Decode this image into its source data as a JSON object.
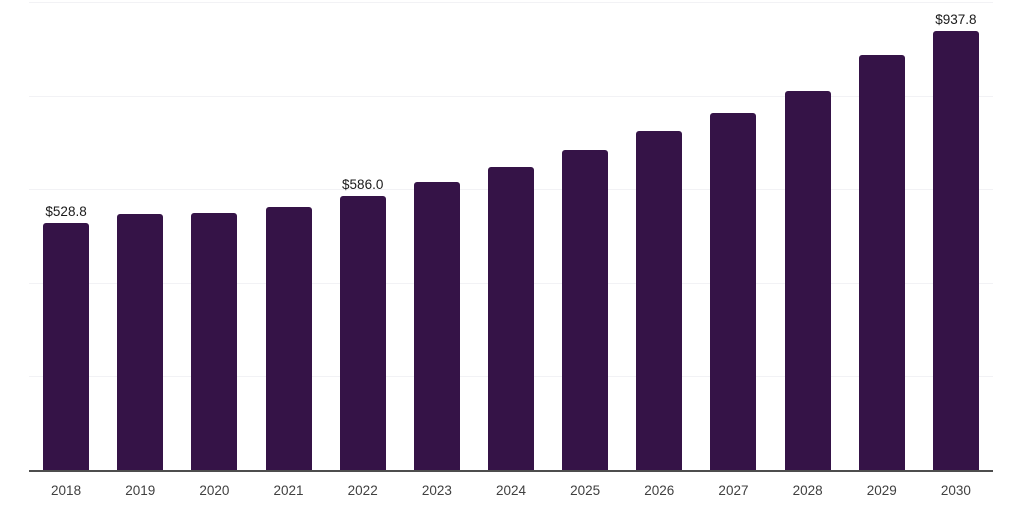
{
  "chart_data": {
    "type": "bar",
    "title": "",
    "xlabel": "",
    "ylabel": "",
    "ylim": [
      0,
      1000
    ],
    "gridline_interval": 200,
    "grid": "horizontal",
    "y_tick_labels_visible": false,
    "legend": "none",
    "categories": [
      "2018",
      "2019",
      "2020",
      "2021",
      "2022",
      "2023",
      "2024",
      "2025",
      "2026",
      "2027",
      "2028",
      "2029",
      "2030"
    ],
    "values": [
      528.8,
      546,
      549,
      561,
      586.0,
      615,
      647,
      683,
      724,
      763,
      810,
      886,
      937.8
    ],
    "points": [
      {
        "category": "2018",
        "value": 528.8,
        "label": "$528.8"
      },
      {
        "category": "2019",
        "value": 546,
        "label": null
      },
      {
        "category": "2020",
        "value": 549,
        "label": null
      },
      {
        "category": "2021",
        "value": 561,
        "label": null
      },
      {
        "category": "2022",
        "value": 586.0,
        "label": "$586.0"
      },
      {
        "category": "2023",
        "value": 615,
        "label": null
      },
      {
        "category": "2024",
        "value": 647,
        "label": null
      },
      {
        "category": "2025",
        "value": 683,
        "label": null
      },
      {
        "category": "2026",
        "value": 724,
        "label": null
      },
      {
        "category": "2027",
        "value": 763,
        "label": null
      },
      {
        "category": "2028",
        "value": 810,
        "label": null
      },
      {
        "category": "2029",
        "value": 886,
        "label": null
      },
      {
        "category": "2030",
        "value": 937.8,
        "label": "$937.8"
      }
    ],
    "colors": {
      "bar": "#351347",
      "gridline": "#f2f2f5",
      "axis": "#4d4d4d",
      "data_label": "#1a1a1a",
      "tick_label": "#404040",
      "background": "#ffffff"
    }
  }
}
